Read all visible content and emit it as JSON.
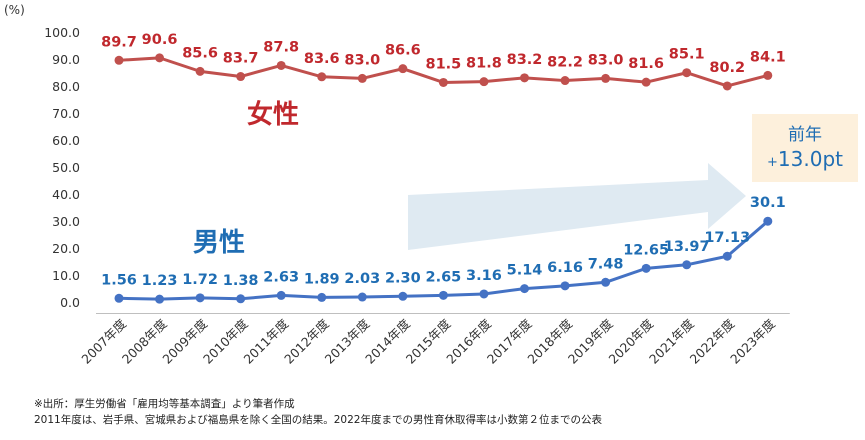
{
  "chart_data": {
    "type": "line",
    "unit_label": "(%)",
    "categories": [
      "2007年度",
      "2008年度",
      "2009年度",
      "2010年度",
      "2011年度",
      "2012年度",
      "2013年度",
      "2014年度",
      "2015年度",
      "2016年度",
      "2017年度",
      "2018年度",
      "2019年度",
      "2020年度",
      "2021年度",
      "2022年度",
      "2023年度"
    ],
    "ylim": [
      0,
      100
    ],
    "yticks": [
      "0.0",
      "10.0",
      "20.0",
      "30.0",
      "40.0",
      "50.0",
      "60.0",
      "70.0",
      "80.0",
      "90.0",
      "100.0"
    ],
    "grid": false,
    "series": [
      {
        "name": "女性",
        "color": "#c0504d",
        "label_color": "#c0282d",
        "values": [
          89.7,
          90.6,
          85.6,
          83.7,
          87.8,
          83.6,
          83.0,
          86.6,
          81.5,
          81.8,
          83.2,
          82.2,
          83.0,
          81.6,
          85.1,
          80.2,
          84.1
        ],
        "data_labels": [
          "89.7",
          "90.6",
          "85.6",
          "83.7",
          "87.8",
          "83.6",
          "83.0",
          "86.6",
          "81.5",
          "81.8",
          "83.2",
          "82.2",
          "83.0",
          "81.6",
          "85.1",
          "80.2",
          "84.1"
        ]
      },
      {
        "name": "男性",
        "color": "#4472c4",
        "label_color": "#1f6db3",
        "values": [
          1.56,
          1.23,
          1.72,
          1.38,
          2.63,
          1.89,
          2.03,
          2.3,
          2.65,
          3.16,
          5.14,
          6.16,
          7.48,
          12.65,
          13.97,
          17.13,
          30.1
        ],
        "data_labels": [
          "1.56",
          "1.23",
          "1.72",
          "1.38",
          "2.63",
          "1.89",
          "2.03",
          "2.30",
          "2.65",
          "3.16",
          "5.14",
          "6.16",
          "7.48",
          "12.65",
          "13.97",
          "17.13",
          "30.1"
        ]
      }
    ],
    "annotation": {
      "line1": "前年",
      "line2_prefix": "+",
      "line2_value": "13.0pt"
    }
  },
  "notes": [
    "※出所：厚生労働省「雇用均等基本調査」より筆者作成",
    "2011年度は、岩手県、宮城県および福島県を除く全国の結果。2022年度までの男性育休取得率は小数第２位までの公表"
  ],
  "colors": {
    "arrow": "#dfeaf2",
    "axis": "#bfbfbf",
    "callout_bg": "#fdf0dc"
  }
}
